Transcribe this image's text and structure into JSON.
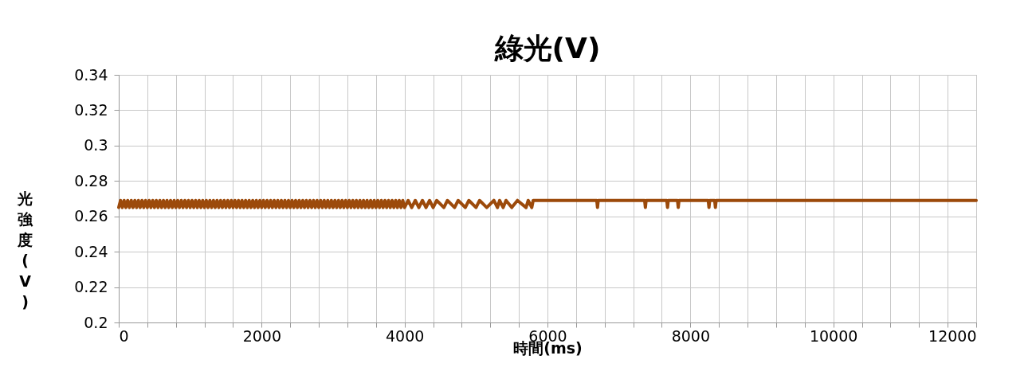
{
  "chart_data": {
    "type": "line",
    "title": "綠光(V)",
    "xlabel": "時間(ms)",
    "ylabel": "光強度(V)",
    "x": [
      0,
      25,
      50,
      75,
      100,
      125,
      150,
      175,
      200,
      225,
      250,
      275,
      300,
      325,
      350,
      375,
      400,
      425,
      450,
      475,
      500,
      525,
      550,
      575,
      600,
      625,
      650,
      675,
      700,
      725,
      750,
      775,
      800,
      825,
      850,
      875,
      900,
      925,
      950,
      975,
      1000,
      1025,
      1050,
      1075,
      1100,
      1125,
      1150,
      1175,
      1200,
      1225,
      1250,
      1275,
      1300,
      1325,
      1350,
      1375,
      1400,
      1425,
      1450,
      1475,
      1500,
      1525,
      1550,
      1575,
      1600,
      1625,
      1650,
      1675,
      1700,
      1725,
      1750,
      1775,
      1800,
      1825,
      1850,
      1875,
      1900,
      1925,
      1950,
      1975,
      2000,
      2025,
      2050,
      2075,
      2100,
      2125,
      2150,
      2175,
      2200,
      2225,
      2250,
      2275,
      2300,
      2325,
      2350,
      2375,
      2400,
      2425,
      2450,
      2475,
      2500,
      2525,
      2550,
      2575,
      2600,
      2625,
      2650,
      2675,
      2700,
      2725,
      2750,
      2775,
      2800,
      2825,
      2850,
      2875,
      2900,
      2925,
      2950,
      2975,
      3000,
      3025,
      3050,
      3075,
      3100,
      3125,
      3150,
      3175,
      3200,
      3225,
      3250,
      3275,
      3300,
      3325,
      3350,
      3375,
      3400,
      3425,
      3450,
      3475,
      3500,
      3525,
      3550,
      3575,
      3600,
      3625,
      3650,
      3675,
      3700,
      3725,
      3750,
      3775,
      3800,
      3825,
      3850,
      3875,
      3900,
      3925,
      3950,
      3975,
      4000,
      4050,
      4100,
      4150,
      4200,
      4250,
      4300,
      4350,
      4400,
      4450,
      4550,
      4600,
      4700,
      4750,
      4850,
      4900,
      5000,
      5050,
      5150,
      5250,
      5300,
      5330,
      5380,
      5420,
      5500,
      5580,
      5700,
      5730,
      5780,
      5800,
      6690,
      6700,
      6710,
      7360,
      7370,
      7380,
      7670,
      7680,
      7690,
      7820,
      7830,
      7840,
      8250,
      8260,
      8270,
      8340,
      8350,
      8360,
      12000
    ],
    "series": [
      {
        "color": "#9c4a0b",
        "values": [
          0.265,
          0.269,
          0.265,
          0.269,
          0.265,
          0.269,
          0.265,
          0.269,
          0.265,
          0.269,
          0.265,
          0.269,
          0.265,
          0.269,
          0.265,
          0.269,
          0.265,
          0.269,
          0.265,
          0.269,
          0.265,
          0.269,
          0.265,
          0.269,
          0.265,
          0.269,
          0.265,
          0.269,
          0.265,
          0.269,
          0.265,
          0.269,
          0.265,
          0.269,
          0.265,
          0.269,
          0.265,
          0.269,
          0.265,
          0.269,
          0.265,
          0.269,
          0.265,
          0.269,
          0.265,
          0.269,
          0.265,
          0.269,
          0.265,
          0.269,
          0.265,
          0.269,
          0.265,
          0.269,
          0.265,
          0.269,
          0.265,
          0.269,
          0.265,
          0.269,
          0.265,
          0.269,
          0.265,
          0.269,
          0.265,
          0.269,
          0.265,
          0.269,
          0.265,
          0.269,
          0.265,
          0.269,
          0.265,
          0.269,
          0.265,
          0.269,
          0.265,
          0.269,
          0.265,
          0.269,
          0.265,
          0.269,
          0.265,
          0.269,
          0.265,
          0.269,
          0.265,
          0.269,
          0.265,
          0.269,
          0.265,
          0.269,
          0.265,
          0.269,
          0.265,
          0.269,
          0.265,
          0.269,
          0.265,
          0.269,
          0.265,
          0.269,
          0.265,
          0.269,
          0.265,
          0.269,
          0.265,
          0.269,
          0.265,
          0.269,
          0.265,
          0.269,
          0.265,
          0.269,
          0.265,
          0.269,
          0.265,
          0.269,
          0.265,
          0.269,
          0.265,
          0.269,
          0.265,
          0.269,
          0.265,
          0.269,
          0.265,
          0.269,
          0.265,
          0.269,
          0.265,
          0.269,
          0.265,
          0.269,
          0.265,
          0.269,
          0.265,
          0.269,
          0.265,
          0.269,
          0.265,
          0.269,
          0.265,
          0.269,
          0.265,
          0.269,
          0.265,
          0.269,
          0.265,
          0.269,
          0.265,
          0.269,
          0.265,
          0.269,
          0.265,
          0.269,
          0.265,
          0.269,
          0.265,
          0.269,
          0.265,
          0.269,
          0.265,
          0.269,
          0.265,
          0.269,
          0.265,
          0.269,
          0.265,
          0.269,
          0.265,
          0.269,
          0.265,
          0.269,
          0.265,
          0.269,
          0.265,
          0.269,
          0.265,
          0.269,
          0.265,
          0.269,
          0.265,
          0.269,
          0.265,
          0.269,
          0.265,
          0.269,
          0.265,
          0.269,
          0.269,
          0.265,
          0.269,
          0.269,
          0.265,
          0.269,
          0.269,
          0.265,
          0.269,
          0.269,
          0.265,
          0.269,
          0.269,
          0.265,
          0.269,
          0.269,
          0.265,
          0.269,
          0.269
        ]
      }
    ],
    "xlim": [
      0,
      12000
    ],
    "ylim": [
      0.2,
      0.34
    ],
    "xticks": [
      0,
      {
        "value": 400,
        "label": null
      },
      {
        "value": 800,
        "label": null
      },
      {
        "value": 1200,
        "label": null
      },
      {
        "value": 1600,
        "label": null
      },
      2000,
      {
        "value": 2400,
        "label": null
      },
      {
        "value": 2800,
        "label": null
      },
      {
        "value": 3200,
        "label": null
      },
      {
        "value": 3600,
        "label": null
      },
      4000,
      {
        "value": 4400,
        "label": null
      },
      {
        "value": 4800,
        "label": null
      },
      {
        "value": 5200,
        "label": null
      },
      {
        "value": 5600,
        "label": null
      },
      6000,
      {
        "value": 6400,
        "label": null
      },
      {
        "value": 6800,
        "label": null
      },
      {
        "value": 7200,
        "label": null
      },
      {
        "value": 7600,
        "label": null
      },
      8000,
      {
        "value": 8400,
        "label": null
      },
      {
        "value": 8800,
        "label": null
      },
      {
        "value": 9200,
        "label": null
      },
      {
        "value": 9600,
        "label": null
      },
      10000,
      {
        "value": 10400,
        "label": null
      },
      {
        "value": 10800,
        "label": null
      },
      {
        "value": 11200,
        "label": null
      },
      {
        "value": 11600,
        "label": null
      },
      12000
    ],
    "yticks": [
      0.2,
      0.22,
      0.24,
      0.26,
      0.28,
      0.3,
      0.32,
      0.34
    ],
    "grid": true,
    "marker": "none",
    "line_style": "solid"
  }
}
